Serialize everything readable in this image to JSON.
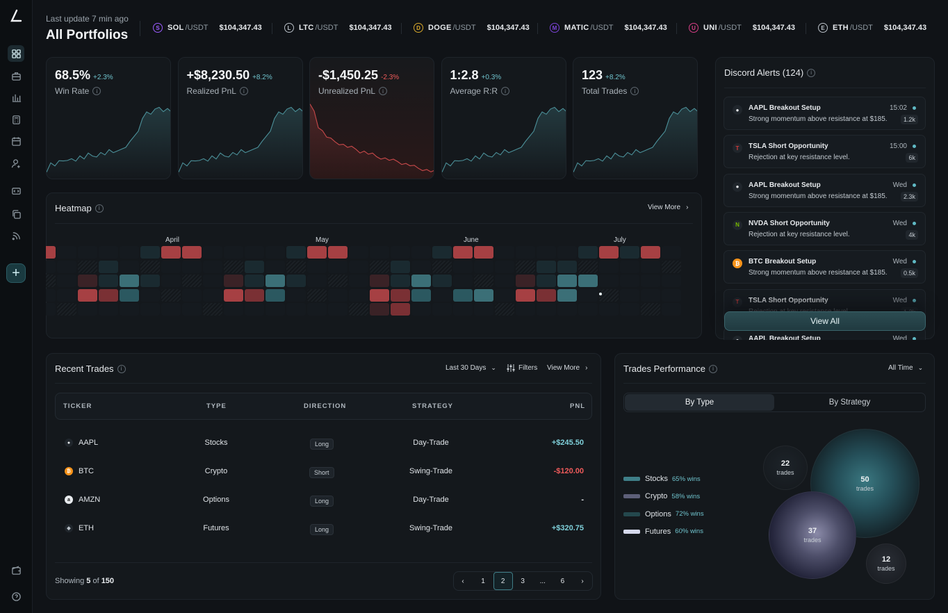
{
  "header": {
    "subtitle": "Last update 7 min ago",
    "title": "All Portfolios"
  },
  "tickers": [
    {
      "symbol": "SOL",
      "quote": "/USDT",
      "price": "$104,347.43",
      "icon": "solana-icon",
      "color": "#9b5cff"
    },
    {
      "symbol": "LTC",
      "quote": "/USDT",
      "price": "$104,347.43",
      "icon": "litecoin-icon",
      "color": "#b9c0c7"
    },
    {
      "symbol": "DOGE",
      "quote": "/USDT",
      "price": "$104,347.43",
      "icon": "dogecoin-icon",
      "color": "#d9a92c"
    },
    {
      "symbol": "MATIC",
      "quote": "/USDT",
      "price": "$104,347.43",
      "icon": "polygon-icon",
      "color": "#7c43d9"
    },
    {
      "symbol": "UNI",
      "quote": "/USDT",
      "price": "$104,347.43",
      "icon": "uniswap-icon",
      "color": "#d83f86"
    },
    {
      "symbol": "ETH",
      "quote": "/USDT",
      "price": "$104,347.43",
      "icon": "ethereum-icon",
      "color": "#b9c0c7"
    }
  ],
  "stats": [
    {
      "value": "68.5%",
      "change": "+2.3%",
      "label": "Win Rate",
      "trend": "up"
    },
    {
      "value": "+$8,230.50",
      "change": "+8.2%",
      "label": "Realized PnL",
      "trend": "up"
    },
    {
      "value": "-$1,450.25",
      "change": "-2.3%",
      "label": "Unrealized PnL",
      "trend": "down"
    },
    {
      "value": "1:2.8",
      "change": "+0.3%",
      "label": "Average R:R",
      "trend": "up"
    },
    {
      "value": "123",
      "change": "+8.2%",
      "label": "Total Trades",
      "trend": "up"
    }
  ],
  "heatmap": {
    "title": "Heatmap",
    "view_more": "View More",
    "months": [
      "April",
      "May",
      "June",
      "July"
    ]
  },
  "alerts": {
    "title": "Discord Alerts (124)",
    "view_all": "View All",
    "items": [
      {
        "title": "AAPL Breakout Setup",
        "desc": "Strong momentum above resistance at $185.",
        "time": "15:02",
        "count": "1.2k",
        "icon": "apple-icon"
      },
      {
        "title": "TSLA Short Opportunity",
        "desc": "Rejection at key resistance level.",
        "time": "15:00",
        "count": "6k",
        "icon": "tesla-icon"
      },
      {
        "title": "AAPL Breakout Setup",
        "desc": "Strong momentum above resistance at $185.",
        "time": "Wed",
        "count": "2.3k",
        "icon": "apple-icon"
      },
      {
        "title": "NVDA Short Opportunity",
        "desc": "Rejection at key resistance level.",
        "time": "Wed",
        "count": "4k",
        "icon": "nvidia-icon"
      },
      {
        "title": "BTC Breakout Setup",
        "desc": "Strong momentum above resistance at $185.",
        "time": "Wed",
        "count": "0.5k",
        "icon": "bitcoin-icon"
      },
      {
        "title": "TSLA Short Opportunity",
        "desc": "Rejection at key resistance level.",
        "time": "Wed",
        "count": "1.2k",
        "icon": "tesla-icon"
      },
      {
        "title": "AAPL Breakout Setup",
        "desc": "",
        "time": "Wed",
        "count": "",
        "icon": "apple-icon"
      }
    ]
  },
  "trades": {
    "title": "Recent Trades",
    "range": "Last 30 Days",
    "filters": "Filters",
    "view_more": "View More",
    "columns": [
      "TICKER",
      "TYPE",
      "DIRECTION",
      "STRATEGY",
      "PNL"
    ],
    "rows": [
      {
        "ticker": "AAPL",
        "type": "Stocks",
        "direction": "Long",
        "strategy": "Day-Trade",
        "pnl": "+$245.50",
        "icon": "apple-icon",
        "pnl_color": "#7fd0da"
      },
      {
        "ticker": "BTC",
        "type": "Crypto",
        "direction": "Short",
        "strategy": "Swing-Trade",
        "pnl": "-$120.00",
        "icon": "bitcoin-icon",
        "pnl_color": "#ef5b5b"
      },
      {
        "ticker": "AMZN",
        "type": "Options",
        "direction": "Long",
        "strategy": "Day-Trade",
        "pnl": "-",
        "icon": "amazon-icon",
        "pnl_color": "#dfe3e7"
      },
      {
        "ticker": "ETH",
        "type": "Futures",
        "direction": "Long",
        "strategy": "Swing-Trade",
        "pnl": "+$320.75",
        "icon": "ethereum-icon",
        "pnl_color": "#7fd0da"
      }
    ],
    "showing_prefix": "Showing ",
    "showing_count": "5",
    "showing_mid": " of ",
    "showing_total": "150",
    "pages": [
      "1",
      "2",
      "3",
      "...",
      "6"
    ],
    "current_page": "2"
  },
  "performance": {
    "title": "Trades Performance",
    "range": "All Time",
    "tabs": [
      "By Type",
      "By Strategy"
    ],
    "legend": [
      {
        "name": "Stocks",
        "wins": "65% wins",
        "color": "#3f7f88"
      },
      {
        "name": "Crypto",
        "wins": "58% wins",
        "color": "#5d5f78"
      },
      {
        "name": "Options",
        "wins": "72% wins",
        "color": "#24484d"
      },
      {
        "name": "Futures",
        "wins": "60% wins",
        "color": "#d6d9ec"
      }
    ],
    "bubbles": [
      {
        "count": "22",
        "label": "trades"
      },
      {
        "count": "50",
        "label": "trades"
      },
      {
        "count": "37",
        "label": "trades"
      },
      {
        "count": "12",
        "label": "trades"
      }
    ]
  }
}
